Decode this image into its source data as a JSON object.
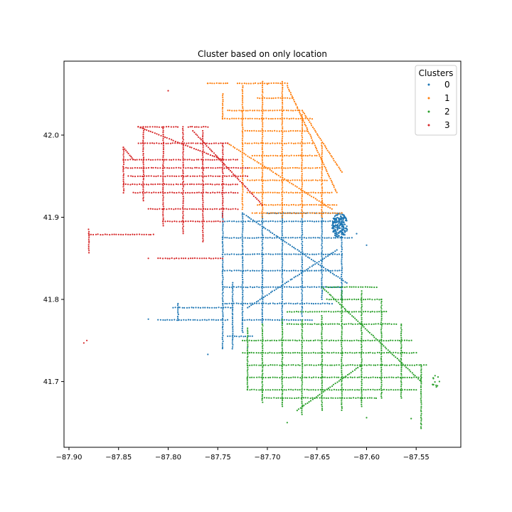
{
  "chart_data": {
    "type": "scatter",
    "title": "Cluster based on only location",
    "xlabel": "",
    "ylabel": "",
    "xlim": [
      -87.905,
      -87.505
    ],
    "ylim": [
      41.62,
      42.09
    ],
    "xticks": [
      -87.9,
      -87.85,
      -87.8,
      -87.75,
      -87.7,
      -87.65,
      -87.6,
      -87.55
    ],
    "xtick_labels": [
      "−87.90",
      "−87.85",
      "−87.80",
      "−87.75",
      "−87.70",
      "−87.65",
      "−87.60",
      "−87.55"
    ],
    "yticks": [
      41.7,
      41.8,
      41.9,
      42.0
    ],
    "ytick_labels": [
      "41.7",
      "41.8",
      "41.9",
      "42.0"
    ],
    "grid": false,
    "legend": {
      "title": "Clusters",
      "placement": "top-right"
    },
    "series": [
      {
        "name": "0",
        "color": "#1f77b4",
        "segments": [
          [
            [
              -87.745,
              41.895
            ],
            [
              -87.625,
              41.895
            ]
          ],
          [
            [
              -87.745,
              41.875
            ],
            [
              -87.615,
              41.875
            ]
          ],
          [
            [
              -87.745,
              41.855
            ],
            [
              -87.625,
              41.855
            ]
          ],
          [
            [
              -87.745,
              41.835
            ],
            [
              -87.625,
              41.835
            ]
          ],
          [
            [
              -87.745,
              41.815
            ],
            [
              -87.625,
              41.815
            ]
          ],
          [
            [
              -87.745,
              41.795
            ],
            [
              -87.635,
              41.795
            ]
          ],
          [
            [
              -87.725,
              41.775
            ],
            [
              -87.655,
              41.775
            ]
          ],
          [
            [
              -87.795,
              41.79
            ],
            [
              -87.735,
              41.79
            ]
          ],
          [
            [
              -87.81,
              41.775
            ],
            [
              -87.74,
              41.775
            ]
          ],
          [
            [
              -87.74,
              41.755
            ],
            [
              -87.715,
              41.755
            ]
          ],
          [
            [
              -87.745,
              41.905
            ],
            [
              -87.745,
              41.74
            ]
          ],
          [
            [
              -87.725,
              41.905
            ],
            [
              -87.725,
              41.76
            ]
          ],
          [
            [
              -87.705,
              41.905
            ],
            [
              -87.705,
              41.77
            ]
          ],
          [
            [
              -87.685,
              41.905
            ],
            [
              -87.685,
              41.77
            ]
          ],
          [
            [
              -87.665,
              41.905
            ],
            [
              -87.665,
              41.78
            ]
          ],
          [
            [
              -87.645,
              41.905
            ],
            [
              -87.645,
              41.8
            ]
          ],
          [
            [
              -87.625,
              41.9
            ],
            [
              -87.625,
              41.8
            ]
          ],
          [
            [
              -87.735,
              41.82
            ],
            [
              -87.735,
              41.74
            ]
          ],
          [
            [
              -87.79,
              41.795
            ],
            [
              -87.79,
              41.775
            ]
          ],
          [
            [
              -87.725,
              41.905
            ],
            [
              -87.62,
              41.82
            ]
          ],
          [
            [
              -87.72,
              41.79
            ],
            [
              -87.63,
              41.86
            ]
          ],
          [
            [
              -87.7,
              41.905
            ],
            [
              -87.625,
              41.905
            ]
          ]
        ],
        "clusters": [
          {
            "x": -87.627,
            "y": 41.89,
            "rx": 0.008,
            "ry": 0.015,
            "n": 180
          }
        ],
        "points": [
          [
            -87.82,
            41.776
          ],
          [
            -87.76,
            41.733
          ],
          [
            -87.72,
            41.742
          ],
          [
            -87.6,
            41.866
          ],
          [
            -87.61,
            41.88
          ]
        ]
      },
      {
        "name": "1",
        "color": "#ff7f0e",
        "segments": [
          [
            [
              -87.76,
              42.063
            ],
            [
              -87.74,
              42.063
            ]
          ],
          [
            [
              -87.73,
              42.063
            ],
            [
              -87.68,
              42.063
            ]
          ],
          [
            [
              -87.71,
              42.045
            ],
            [
              -87.675,
              42.045
            ]
          ],
          [
            [
              -87.74,
              42.03
            ],
            [
              -87.665,
              42.03
            ]
          ],
          [
            [
              -87.745,
              42.02
            ],
            [
              -87.655,
              42.02
            ]
          ],
          [
            [
              -87.725,
              42.005
            ],
            [
              -87.66,
              42.005
            ]
          ],
          [
            [
              -87.725,
              41.99
            ],
            [
              -87.655,
              41.99
            ]
          ],
          [
            [
              -87.715,
              41.975
            ],
            [
              -87.65,
              41.975
            ]
          ],
          [
            [
              -87.72,
              41.96
            ],
            [
              -87.645,
              41.96
            ]
          ],
          [
            [
              -87.72,
              41.945
            ],
            [
              -87.64,
              41.945
            ]
          ],
          [
            [
              -87.72,
              41.93
            ],
            [
              -87.635,
              41.93
            ]
          ],
          [
            [
              -87.71,
              41.915
            ],
            [
              -87.63,
              41.915
            ]
          ],
          [
            [
              -87.715,
              41.905
            ],
            [
              -87.625,
              41.905
            ]
          ],
          [
            [
              -87.745,
              42.05
            ],
            [
              -87.745,
              42.02
            ]
          ],
          [
            [
              -87.725,
              42.06
            ],
            [
              -87.725,
              41.91
            ]
          ],
          [
            [
              -87.705,
              42.065
            ],
            [
              -87.705,
              41.9
            ]
          ],
          [
            [
              -87.685,
              42.065
            ],
            [
              -87.685,
              41.9
            ]
          ],
          [
            [
              -87.665,
              42.025
            ],
            [
              -87.665,
              41.9
            ]
          ],
          [
            [
              -87.645,
              41.99
            ],
            [
              -87.645,
              41.9
            ]
          ],
          [
            [
              -87.74,
              41.99
            ],
            [
              -87.635,
              41.91
            ]
          ],
          [
            [
              -87.68,
              42.06
            ],
            [
              -87.63,
              41.93
            ]
          ],
          [
            [
              -87.665,
              42.03
            ],
            [
              -87.625,
              41.955
            ]
          ]
        ],
        "clusters": [],
        "points": [
          [
            -87.76,
            42.063
          ],
          [
            -87.7,
            42.062
          ]
        ]
      },
      {
        "name": "2",
        "color": "#2ca02c",
        "segments": [
          [
            [
              -87.64,
              41.815
            ],
            [
              -87.59,
              41.815
            ]
          ],
          [
            [
              -87.64,
              41.8
            ],
            [
              -87.585,
              41.8
            ]
          ],
          [
            [
              -87.68,
              41.785
            ],
            [
              -87.58,
              41.785
            ]
          ],
          [
            [
              -87.68,
              41.77
            ],
            [
              -87.57,
              41.77
            ]
          ],
          [
            [
              -87.725,
              41.75
            ],
            [
              -87.555,
              41.75
            ]
          ],
          [
            [
              -87.725,
              41.735
            ],
            [
              -87.55,
              41.735
            ]
          ],
          [
            [
              -87.72,
              41.72
            ],
            [
              -87.54,
              41.72
            ]
          ],
          [
            [
              -87.72,
              41.705
            ],
            [
              -87.545,
              41.705
            ]
          ],
          [
            [
              -87.72,
              41.69
            ],
            [
              -87.55,
              41.69
            ]
          ],
          [
            [
              -87.705,
              41.68
            ],
            [
              -87.59,
              41.68
            ]
          ],
          [
            [
              -87.72,
              41.765
            ],
            [
              -87.72,
              41.69
            ]
          ],
          [
            [
              -87.705,
              41.77
            ],
            [
              -87.705,
              41.675
            ]
          ],
          [
            [
              -87.685,
              41.775
            ],
            [
              -87.685,
              41.67
            ]
          ],
          [
            [
              -87.665,
              41.775
            ],
            [
              -87.665,
              41.66
            ]
          ],
          [
            [
              -87.645,
              41.78
            ],
            [
              -87.645,
              41.665
            ]
          ],
          [
            [
              -87.625,
              41.81
            ],
            [
              -87.625,
              41.665
            ]
          ],
          [
            [
              -87.605,
              41.81
            ],
            [
              -87.605,
              41.67
            ]
          ],
          [
            [
              -87.585,
              41.8
            ],
            [
              -87.585,
              41.68
            ]
          ],
          [
            [
              -87.565,
              41.77
            ],
            [
              -87.565,
              41.68
            ]
          ],
          [
            [
              -87.545,
              41.72
            ],
            [
              -87.545,
              41.645
            ]
          ],
          [
            [
              -87.67,
              41.665
            ],
            [
              -87.605,
              41.72
            ]
          ],
          [
            [
              -87.645,
              41.815
            ],
            [
              -87.545,
              41.7
            ]
          ]
        ],
        "clusters": [
          {
            "x": -87.53,
            "y": 41.7,
            "rx": 0.004,
            "ry": 0.008,
            "n": 12
          }
        ],
        "points": [
          [
            -87.68,
            41.65
          ],
          [
            -87.6,
            41.656
          ],
          [
            -87.545,
            41.643
          ],
          [
            -87.555,
            41.655
          ]
        ]
      },
      {
        "name": "3",
        "color": "#d62728",
        "segments": [
          [
            [
              -87.83,
              42.01
            ],
            [
              -87.79,
              42.01
            ]
          ],
          [
            [
              -87.78,
              42.01
            ],
            [
              -87.76,
              42.01
            ]
          ],
          [
            [
              -87.83,
              41.99
            ],
            [
              -87.74,
              41.99
            ]
          ],
          [
            [
              -87.845,
              41.97
            ],
            [
              -87.73,
              41.97
            ]
          ],
          [
            [
              -87.845,
              41.96
            ],
            [
              -87.72,
              41.96
            ]
          ],
          [
            [
              -87.84,
              41.95
            ],
            [
              -87.72,
              41.95
            ]
          ],
          [
            [
              -87.845,
              41.94
            ],
            [
              -87.73,
              41.94
            ]
          ],
          [
            [
              -87.835,
              41.93
            ],
            [
              -87.73,
              41.93
            ]
          ],
          [
            [
              -87.82,
              41.91
            ],
            [
              -87.73,
              41.91
            ]
          ],
          [
            [
              -87.805,
              41.895
            ],
            [
              -87.745,
              41.895
            ]
          ],
          [
            [
              -87.88,
              41.879
            ],
            [
              -87.815,
              41.879
            ]
          ],
          [
            [
              -87.81,
              41.85
            ],
            [
              -87.745,
              41.85
            ]
          ],
          [
            [
              -87.845,
              41.985
            ],
            [
              -87.845,
              41.93
            ]
          ],
          [
            [
              -87.825,
              42.01
            ],
            [
              -87.825,
              41.92
            ]
          ],
          [
            [
              -87.805,
              42.01
            ],
            [
              -87.805,
              41.89
            ]
          ],
          [
            [
              -87.785,
              42.01
            ],
            [
              -87.785,
              41.88
            ]
          ],
          [
            [
              -87.765,
              42.005
            ],
            [
              -87.765,
              41.87
            ]
          ],
          [
            [
              -87.745,
              41.99
            ],
            [
              -87.745,
              41.9
            ]
          ],
          [
            [
              -87.775,
              42.005
            ],
            [
              -87.705,
              41.915
            ]
          ],
          [
            [
              -87.83,
              42.01
            ],
            [
              -87.745,
              41.97
            ]
          ],
          [
            [
              -87.88,
              41.885
            ],
            [
              -87.88,
              41.857
            ]
          ],
          [
            [
              -87.845,
              41.985
            ],
            [
              -87.835,
              41.97
            ]
          ]
        ],
        "clusters": [],
        "points": [
          [
            -87.8,
            42.054
          ],
          [
            -87.885,
            41.747
          ],
          [
            -87.882,
            41.75
          ],
          [
            -87.82,
            41.85
          ]
        ]
      }
    ]
  }
}
